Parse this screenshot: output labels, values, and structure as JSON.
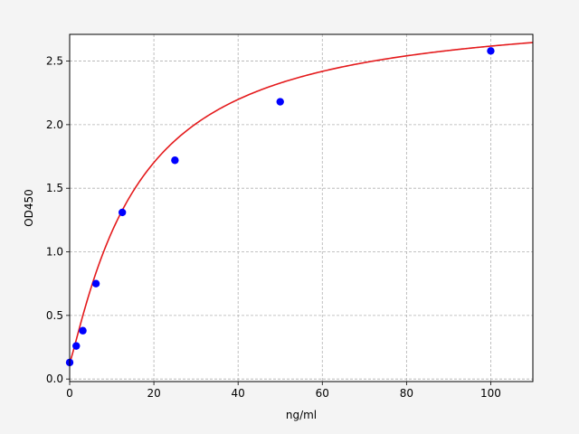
{
  "chart_data": {
    "type": "scatter",
    "title": "",
    "xlabel": "ng/ml",
    "ylabel": "OD450",
    "xlim": [
      0,
      110
    ],
    "ylim": [
      -0.02,
      2.71
    ],
    "x_ticks": [
      0,
      20,
      40,
      60,
      80,
      100
    ],
    "y_ticks": [
      0.0,
      0.5,
      1.0,
      1.5,
      2.0,
      2.5
    ],
    "x_tick_labels": [
      "0",
      "20",
      "40",
      "60",
      "80",
      "100"
    ],
    "y_tick_labels": [
      "0.0",
      "0.5",
      "1.0",
      "1.5",
      "2.0",
      "2.5"
    ],
    "grid": true,
    "legend": "none",
    "series": [
      {
        "kind": "scatter",
        "color": "#0000ff",
        "x": [
          0,
          1.56,
          3.13,
          6.25,
          12.5,
          25,
          50,
          100
        ],
        "y": [
          0.13,
          0.26,
          0.38,
          0.75,
          1.31,
          1.72,
          2.18,
          2.58
        ]
      },
      {
        "kind": "fitted-curve",
        "color": "#e41a1c",
        "model": "four-parameter logistic",
        "params": {
          "A": 0.128,
          "B": 1.15,
          "C": 16.0,
          "D": 2.92
        },
        "x_range": [
          0,
          110
        ]
      }
    ]
  }
}
